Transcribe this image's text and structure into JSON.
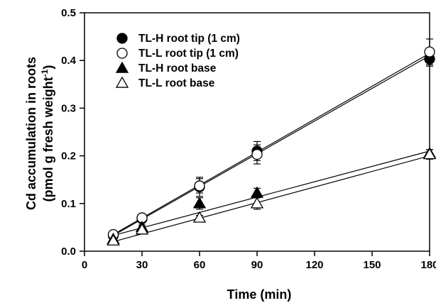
{
  "chart_data": {
    "type": "scatter",
    "xlabel": "Time (min)",
    "ylabel_line1": "Cd accumulation in roots",
    "ylabel_line2_main": "(pmol g fresh weight",
    "ylabel_line2_sup": "-1",
    "ylabel_line2_end": ")",
    "xlim": [
      0,
      180
    ],
    "ylim": [
      0.0,
      0.5
    ],
    "xticks": [
      "0",
      "30",
      "60",
      "90",
      "120",
      "150",
      "180"
    ],
    "yticks": [
      "0.0",
      "0.1",
      "0.2",
      "0.3",
      "0.4",
      "0.5"
    ],
    "legend_position": "top-left",
    "series": [
      {
        "name": "TL-H root tip (1 cm)",
        "marker": "filled-circle",
        "x": [
          15,
          30,
          60,
          90,
          180
        ],
        "y": [
          0.033,
          0.068,
          0.135,
          0.21,
          0.403
        ],
        "err": [
          0.003,
          0.004,
          0.02,
          0.02,
          0.015
        ],
        "fit": [
          [
            15,
            0.033
          ],
          [
            180,
            0.41
          ]
        ]
      },
      {
        "name": "TL-L root tip (1 cm)",
        "marker": "open-circle",
        "x": [
          15,
          30,
          60,
          90,
          180
        ],
        "y": [
          0.035,
          0.07,
          0.137,
          0.203,
          0.418
        ],
        "err": [
          0.004,
          0.004,
          0.015,
          0.02,
          0.027
        ],
        "fit": [
          [
            15,
            0.035
          ],
          [
            180,
            0.415
          ]
        ]
      },
      {
        "name": "TL-H root base",
        "marker": "filled-triangle",
        "x": [
          15,
          30,
          60,
          90,
          180
        ],
        "y": [
          0.025,
          0.05,
          0.1,
          0.122,
          0.205
        ],
        "err": [
          0.003,
          0.005,
          0.012,
          0.01,
          0.008
        ],
        "fit": [
          [
            15,
            0.033
          ],
          [
            180,
            0.21
          ]
        ]
      },
      {
        "name": "TL-L root base",
        "marker": "open-triangle",
        "x": [
          15,
          30,
          60,
          90,
          180
        ],
        "y": [
          0.022,
          0.045,
          0.07,
          0.1,
          0.203
        ],
        "err": [
          0.003,
          0.004,
          0.005,
          0.012,
          0.01
        ],
        "fit": [
          [
            15,
            0.02
          ],
          [
            180,
            0.2
          ]
        ]
      }
    ]
  }
}
